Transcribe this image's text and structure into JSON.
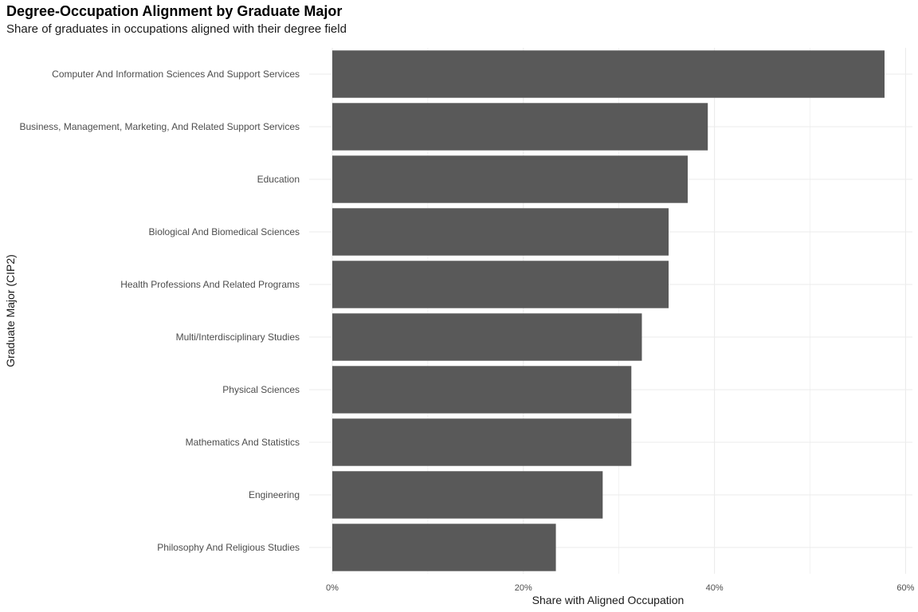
{
  "chart_data": {
    "type": "bar",
    "orientation": "horizontal",
    "title": "Degree-Occupation Alignment by Graduate Major",
    "subtitle": "Share of graduates in occupations aligned with their degree field",
    "xlabel": "Share with Aligned Occupation",
    "ylabel": "Graduate Major (CIP2)",
    "categories": [
      "Computer And Information Sciences And Support Services",
      "Business, Management, Marketing, And Related Support Services",
      "Education",
      "Biological And Biomedical Sciences",
      "Health Professions And Related Programs",
      "Multi/Interdisciplinary Studies",
      "Physical Sciences",
      "Mathematics And Statistics",
      "Engineering",
      "Philosophy And Religious Studies"
    ],
    "values": [
      57.8,
      39.3,
      37.2,
      35.2,
      35.2,
      32.4,
      31.3,
      31.3,
      28.3,
      23.4
    ],
    "xlim": [
      0,
      60.5
    ],
    "xticks": [
      0,
      20,
      40,
      60
    ],
    "xtick_labels": [
      "0%",
      "20%",
      "40%",
      "60%"
    ],
    "grid": true,
    "bar_color": "#595959",
    "grid_color": "#ebebeb"
  }
}
